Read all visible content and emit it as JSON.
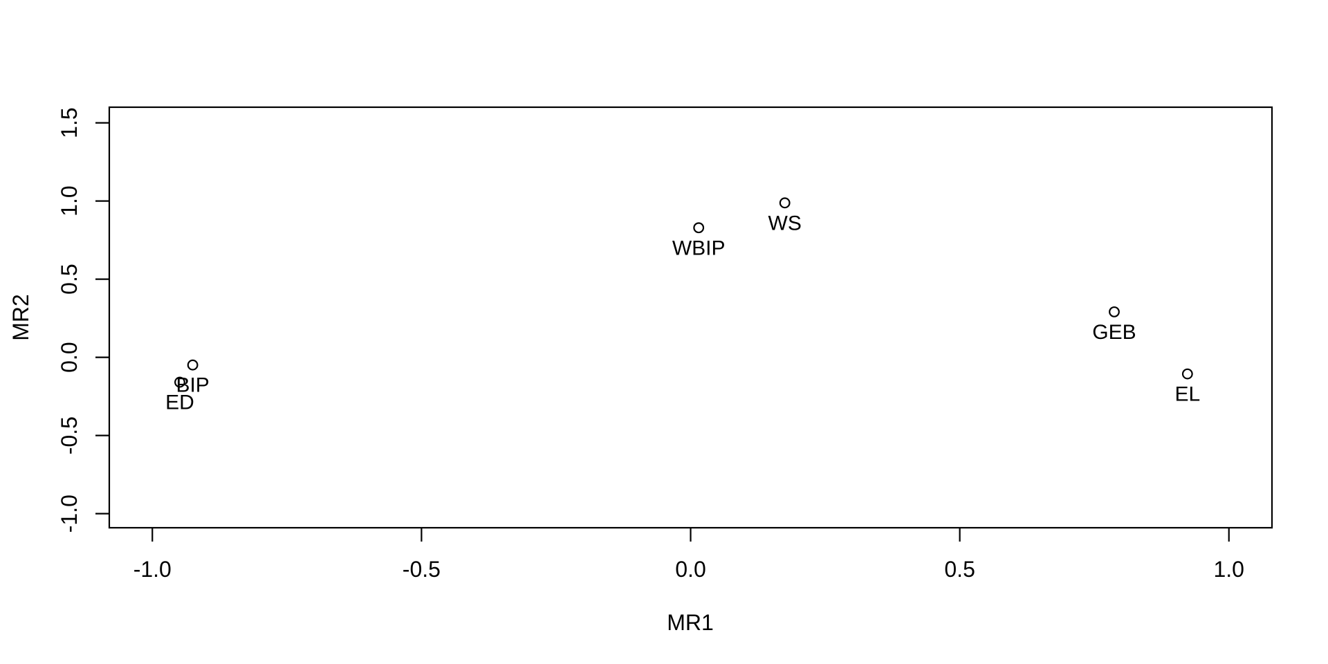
{
  "chart_data": {
    "type": "scatter",
    "title": "",
    "xlabel": "MR1",
    "ylabel": "MR2",
    "xlim": [
      -1.08,
      1.08
    ],
    "ylim": [
      -1.09,
      1.6
    ],
    "x_tick_labels": [
      "-1.0",
      "-0.5",
      "0.0",
      "0.5",
      "1.0"
    ],
    "y_tick_labels": [
      "-1.0",
      "-0.5",
      "0.0",
      "0.5",
      "1.0",
      "1.5"
    ],
    "grid": false,
    "legend": "none",
    "marker": "open-circle",
    "point_label_position": "below",
    "colors": {
      "foreground": "#000000",
      "background": "#ffffff"
    },
    "points": [
      {
        "label": "ED",
        "x": -0.949,
        "y": -0.159
      },
      {
        "label": "BIP",
        "x": -0.925,
        "y": -0.049
      },
      {
        "label": "WBIP",
        "x": 0.015,
        "y": 0.829
      },
      {
        "label": "WS",
        "x": 0.175,
        "y": 0.988
      },
      {
        "label": "GEB",
        "x": 0.787,
        "y": 0.291
      },
      {
        "label": "EL",
        "x": 0.923,
        "y": -0.106
      }
    ]
  }
}
